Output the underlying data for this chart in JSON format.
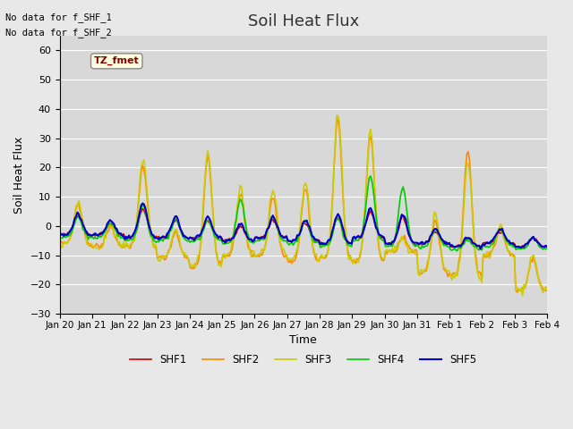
{
  "title": "Soil Heat Flux",
  "xlabel": "Time",
  "ylabel": "Soil Heat Flux",
  "ylim": [
    -30,
    65
  ],
  "yticks": [
    -30,
    -20,
    -10,
    0,
    10,
    20,
    30,
    40,
    50,
    60
  ],
  "background_color": "#e8e8e8",
  "plot_bg_color": "#d8d8d8",
  "no_data_text": [
    "No data for f_SHF_1",
    "No data for f_SHF_2"
  ],
  "tz_label": "TZ_fmet",
  "legend_labels": [
    "SHF1",
    "SHF2",
    "SHF3",
    "SHF4",
    "SHF5"
  ],
  "line_colors": [
    "#cc0000",
    "#ff8800",
    "#cccc00",
    "#00cc00",
    "#0000cc"
  ],
  "line_widths": [
    1.2,
    1.2,
    1.2,
    1.2,
    1.5
  ],
  "n_days": 15,
  "tick_labels": [
    "Jan 20",
    "Jan 21",
    "Jan 22",
    "Jan 23",
    "Jan 24",
    "Jan 25",
    "Jan 26",
    "Jan 27",
    "Jan 28",
    "Jan 29",
    "Jan 30",
    "Jan 31",
    "Feb 1",
    "Feb 2",
    "Feb 3",
    "Feb 4"
  ],
  "grid_color": "#ffffff",
  "grid_linewidth": 0.8,
  "shf3_amp": [
    14,
    7,
    30,
    10,
    40,
    23,
    22,
    27,
    50,
    45,
    5,
    20,
    40,
    10,
    12
  ],
  "shf3_nv": [
    -6,
    -7,
    -7,
    -11,
    -14,
    -10,
    -10,
    -12,
    -11,
    -12,
    -9,
    -16,
    -18,
    -10,
    -22
  ],
  "shf2_amp": [
    13,
    7,
    27,
    9,
    38,
    21,
    20,
    25,
    48,
    43,
    5,
    18,
    43,
    9,
    11
  ],
  "shf2_nv": [
    -6,
    -7,
    -7,
    -11,
    -14,
    -10,
    -10,
    -12,
    -11,
    -12,
    -9,
    -16,
    -17,
    -10,
    -22
  ],
  "shf4_amp": [
    7,
    5,
    12,
    7,
    7,
    15,
    8,
    8,
    10,
    22,
    20,
    6,
    3,
    6,
    4
  ],
  "shf4_nv": [
    -4,
    -4,
    -5,
    -5,
    -5,
    -6,
    -5,
    -6,
    -7,
    -5,
    -7,
    -7,
    -8,
    -7,
    -8
  ],
  "shf5_amp": [
    7,
    5,
    12,
    7,
    7,
    6,
    7,
    7,
    10,
    10,
    10,
    5,
    3,
    5,
    3
  ],
  "shf5_nv": [
    -3,
    -3,
    -4,
    -4,
    -4,
    -5,
    -4,
    -5,
    -6,
    -4,
    -6,
    -6,
    -7,
    -6,
    -7
  ],
  "shf1_amp": [
    7,
    4,
    10,
    6,
    6,
    5,
    6,
    6,
    9,
    9,
    9,
    4,
    3,
    4,
    3
  ],
  "shf1_nv": [
    -3,
    -3,
    -4,
    -4,
    -4,
    -5,
    -4,
    -5,
    -6,
    -4,
    -6,
    -6,
    -7,
    -6,
    -7
  ]
}
